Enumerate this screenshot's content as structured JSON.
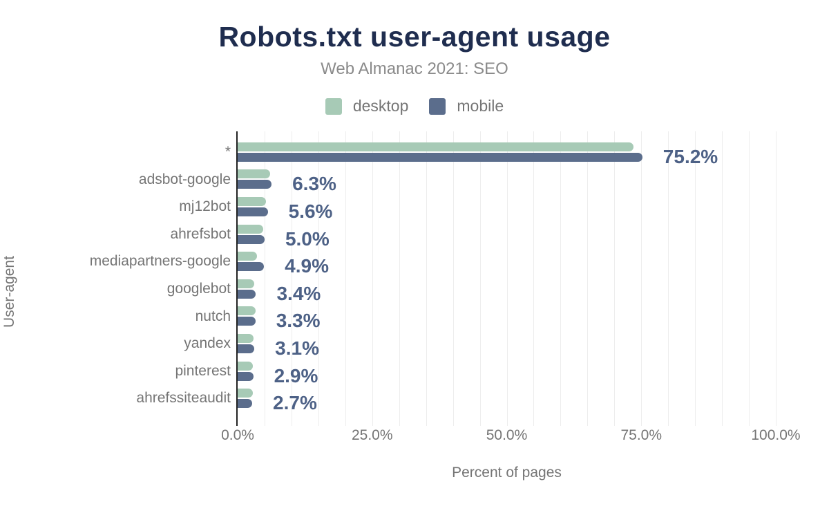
{
  "chart_data": {
    "type": "bar",
    "orientation": "horizontal",
    "title": "Robots.txt user-agent usage",
    "subtitle": "Web Almanac 2021: SEO",
    "xlabel": "Percent of pages",
    "ylabel": "User-agent",
    "xlim": [
      0,
      100
    ],
    "x_ticks": [
      {
        "value": 0,
        "label": "0.0%"
      },
      {
        "value": 25,
        "label": "25.0%"
      },
      {
        "value": 50,
        "label": "50.0%"
      },
      {
        "value": 75,
        "label": "75.0%"
      },
      {
        "value": 100,
        "label": "100.0%"
      }
    ],
    "grid": "vertical minor gridlines every 5%",
    "legend_position": "top-center",
    "categories": [
      "*",
      "adsbot-google",
      "mj12bot",
      "ahrefsbot",
      "mediapartners-google",
      "googlebot",
      "nutch",
      "yandex",
      "pinterest",
      "ahrefssiteaudit"
    ],
    "series": [
      {
        "name": "desktop",
        "color": "#a7cab6",
        "values_estimated_from_pixels": true,
        "values": [
          73.5,
          6.0,
          5.3,
          4.8,
          3.6,
          3.1,
          3.3,
          3.0,
          2.8,
          2.8
        ]
      },
      {
        "name": "mobile",
        "color": "#5b6d8c",
        "values": [
          75.2,
          6.3,
          5.6,
          5.0,
          4.9,
          3.4,
          3.3,
          3.1,
          2.9,
          2.7
        ]
      }
    ],
    "data_labels": [
      "75.2%",
      "6.3%",
      "5.6%",
      "5.0%",
      "4.9%",
      "3.4%",
      "3.3%",
      "3.1%",
      "2.9%",
      "2.7%"
    ],
    "data_labels_series": "mobile"
  },
  "colors": {
    "background": "#ffffff",
    "title": "#1f2d4f",
    "subtitle": "#8a8a8a",
    "axis_text": "#757575",
    "value_label": "#4d6186",
    "gridline": "#ededed",
    "axis_line": "#222222",
    "desktop": "#a7cab6",
    "mobile": "#5b6d8c"
  }
}
